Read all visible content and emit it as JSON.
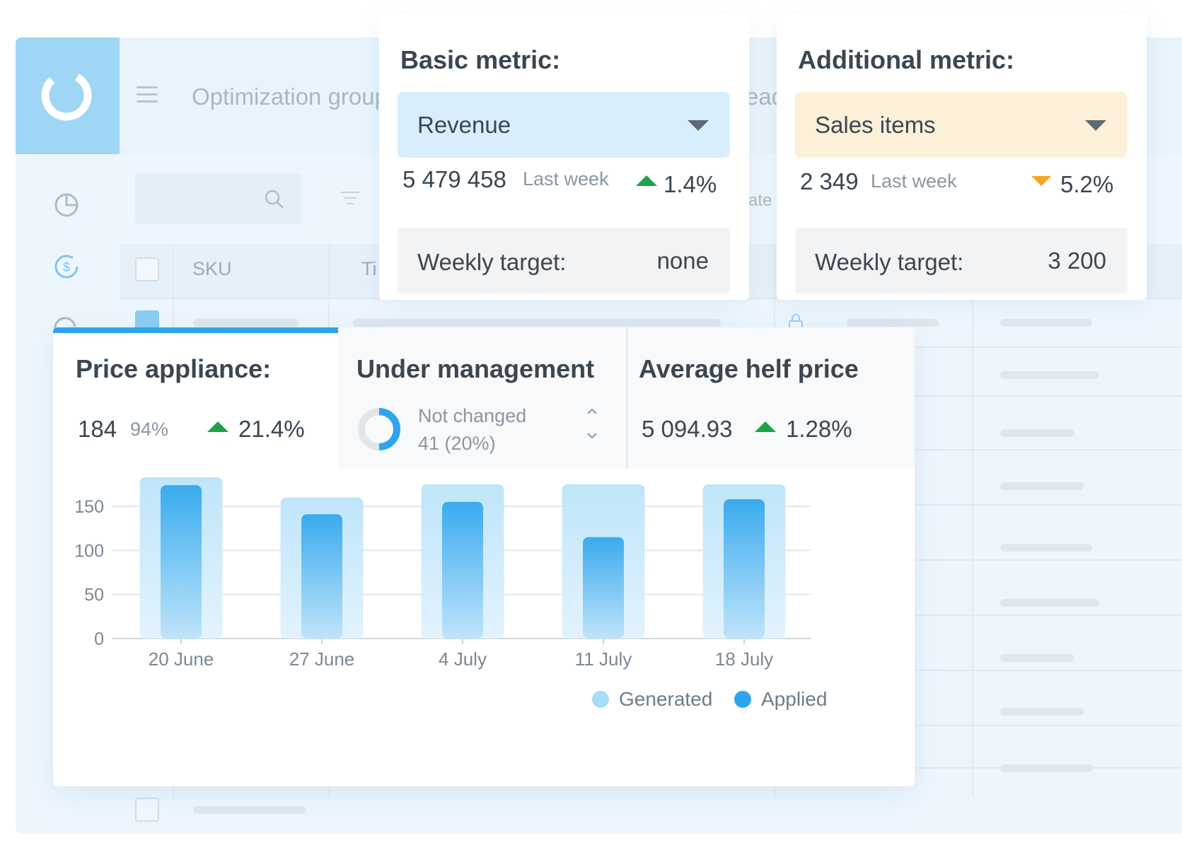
{
  "app": {
    "header_title": "Optimization group",
    "header_fragment_top": "ead",
    "header_fragment_mid": "ate",
    "table_columns": [
      "SKU",
      "Ti"
    ]
  },
  "basic_metric": {
    "title": "Basic metric:",
    "selected": "Revenue",
    "value": "5 479 458",
    "period": "Last week",
    "change": "1.4%",
    "change_direction": "up",
    "target_label": "Weekly target:",
    "target_value": "none",
    "select_color": "#d8eefc"
  },
  "additional_metric": {
    "title": "Additional metric:",
    "selected": "Sales items",
    "value": "2 349",
    "period": "Last week",
    "change": "5.2%",
    "change_direction": "down",
    "target_label": "Weekly target:",
    "target_value": "3 200",
    "select_color": "#fdf0d8"
  },
  "price_appliance": {
    "title": "Price appliance:",
    "count": "184",
    "share": "94%",
    "change": "21.4%"
  },
  "under_management": {
    "title": "Under management",
    "status": "Not changed",
    "value": "41 (20%)",
    "fraction": 0.2
  },
  "average_price": {
    "title": "Average helf price",
    "value": "5 094.93",
    "change": "1.28%"
  },
  "colors": {
    "up": "#1fa24a",
    "down": "#f5a623",
    "accent": "#2ea4ef",
    "generated": "#a9dcf8",
    "applied": "#2ea4ef"
  },
  "chart_data": {
    "type": "bar",
    "categories": [
      "20 June",
      "27 June",
      "4 July",
      "11 July",
      "18 July"
    ],
    "series": [
      {
        "name": "Generated",
        "values": [
          183,
          160,
          175,
          175,
          175
        ]
      },
      {
        "name": "Applied",
        "values": [
          174,
          141,
          155,
          115,
          158
        ]
      }
    ],
    "ylim": [
      0,
      175
    ],
    "yticks": [
      0,
      50,
      100,
      150
    ],
    "grid": true,
    "legend": "bottom-right"
  }
}
